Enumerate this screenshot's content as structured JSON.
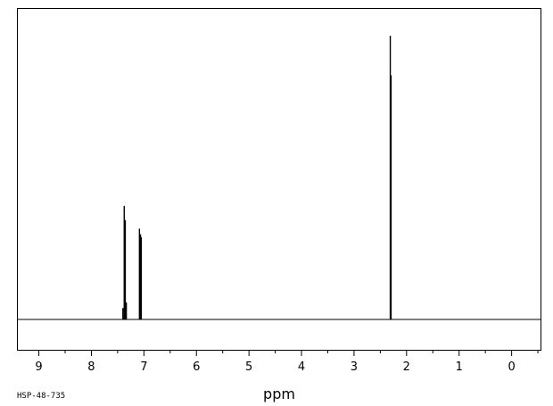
{
  "chart_data": {
    "type": "line",
    "title": "",
    "xlabel": "ppm",
    "ylabel": "",
    "xlim": [
      9.4,
      -0.55
    ],
    "x_reversed": true,
    "grid": false,
    "legend": "none",
    "x_ticks": [
      9,
      8,
      7,
      6,
      5,
      4,
      3,
      2,
      1,
      0
    ],
    "x_tick_labels": [
      "9",
      "8",
      "7",
      "6",
      "5",
      "4",
      "3",
      "2",
      "1",
      "0"
    ],
    "x_minor_step": 0.5,
    "peaks": [
      {
        "x": 7.4,
        "height": 0.04
      },
      {
        "x": 7.375,
        "height": 0.4
      },
      {
        "x": 7.355,
        "height": 0.35
      },
      {
        "x": 7.335,
        "height": 0.06
      },
      {
        "x": 7.085,
        "height": 0.32
      },
      {
        "x": 7.065,
        "height": 0.3
      },
      {
        "x": 7.05,
        "height": 0.29
      },
      {
        "x": 2.31,
        "height": 1.0
      },
      {
        "x": 2.295,
        "height": 0.86
      }
    ],
    "line_color": "#000000"
  },
  "footer": {
    "code": "HSP-48-735"
  }
}
